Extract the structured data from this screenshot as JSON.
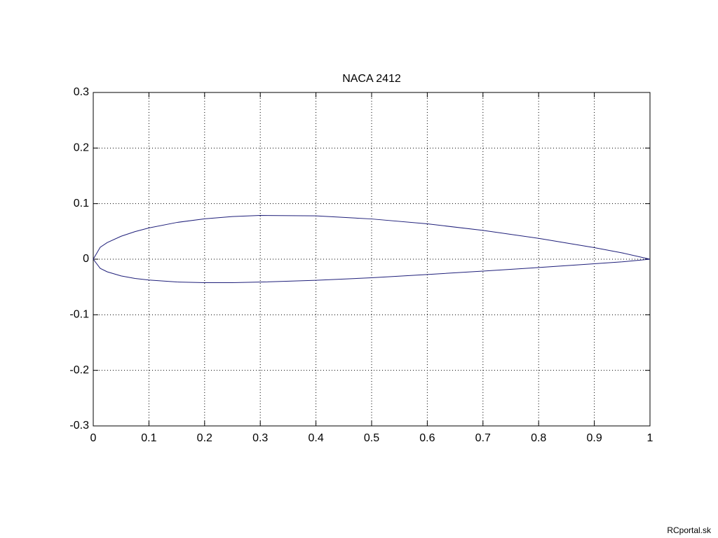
{
  "chart_data": {
    "type": "line",
    "title": "NACA 2412",
    "x": [
      0,
      0.0125,
      0.025,
      0.05,
      0.075,
      0.1,
      0.15,
      0.2,
      0.25,
      0.3,
      0.4,
      0.5,
      0.6,
      0.7,
      0.8,
      0.9,
      0.95,
      1
    ],
    "series": [
      {
        "color": "#1f1f7a",
        "values": [
          0,
          0.0215,
          0.0299,
          0.0413,
          0.0496,
          0.0563,
          0.0661,
          0.0726,
          0.0767,
          0.0788,
          0.078,
          0.0724,
          0.0636,
          0.0518,
          0.0375,
          0.0208,
          0.0114,
          0
        ]
      },
      {
        "color": "#1f1f7a",
        "values": [
          0,
          -0.0165,
          -0.0227,
          -0.0301,
          -0.0346,
          -0.0375,
          -0.041,
          -0.0423,
          -0.0422,
          -0.0412,
          -0.038,
          -0.0334,
          -0.0276,
          -0.0214,
          -0.015,
          -0.0082,
          -0.0048,
          0
        ]
      }
    ],
    "xlim": [
      0,
      1
    ],
    "xticks": [
      0,
      0.1,
      0.2,
      0.3,
      0.4,
      0.5,
      0.6,
      0.7,
      0.8,
      0.9,
      1
    ],
    "ylim": [
      -0.3,
      0.3
    ],
    "yticks": [
      -0.3,
      -0.2,
      -0.1,
      0,
      0.1,
      0.2,
      0.3
    ],
    "grid": true
  },
  "watermark": "RCportal.sk"
}
